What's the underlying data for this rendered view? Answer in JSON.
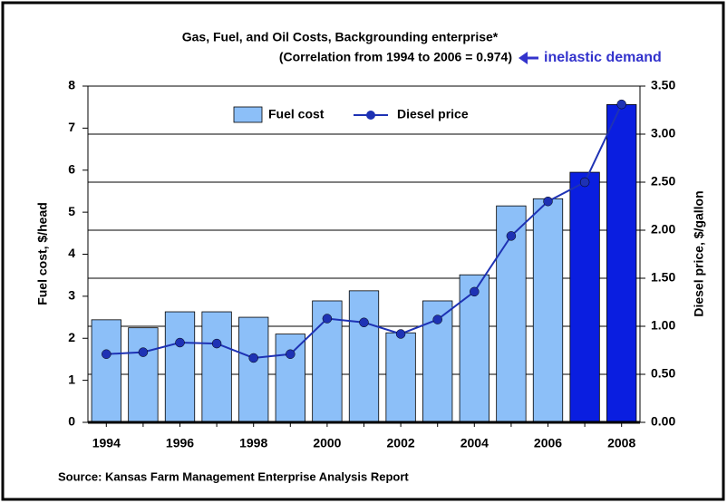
{
  "chart_data": {
    "type": "bar",
    "title": "Gas, Fuel, and Oil Costs, Backgrounding enterprise*",
    "subtitle": "(Correlation from 1994 to 2006 = 0.974)",
    "annotation": "inelastic demand",
    "source": "Source: Kansas Farm Management Enterprise Analysis Report",
    "ylabel": "Fuel cost, $/head",
    "y2label": "Diesel price, $/gallon",
    "categories": [
      "1994",
      null,
      "1996",
      null,
      "1998",
      null,
      "2000",
      null,
      "2002",
      null,
      "2004",
      null,
      "2006",
      null,
      "2008"
    ],
    "series": [
      {
        "name": "Fuel cost",
        "type": "bar",
        "color": "#8cbff8",
        "colors": [
          "#8cbff8",
          "#8cbff8",
          "#8cbff8",
          "#8cbff8",
          "#8cbff8",
          "#8cbff8",
          "#8cbff8",
          "#8cbff8",
          "#8cbff8",
          "#8cbff8",
          "#8cbff8",
          "#8cbff8",
          "#8cbff8",
          "#0a1ee0",
          "#0a1ee0"
        ],
        "values": [
          2.44,
          2.25,
          2.63,
          2.63,
          2.5,
          2.1,
          2.89,
          3.13,
          2.13,
          2.89,
          3.51,
          5.15,
          5.32,
          5.95,
          7.56
        ]
      },
      {
        "name": "Diesel price",
        "type": "line",
        "axis": "y2",
        "color": "#1e32b4",
        "values": [
          0.71,
          0.73,
          0.83,
          0.82,
          0.67,
          0.71,
          1.08,
          1.04,
          0.92,
          1.07,
          1.36,
          1.94,
          2.3,
          2.5,
          3.31
        ]
      }
    ],
    "ylim": [
      0,
      8
    ],
    "yticks": [
      0,
      1,
      2,
      3,
      4,
      5,
      6,
      7,
      8
    ],
    "y2lim": [
      0,
      3.5
    ],
    "y2ticks": [
      {
        "value": 0,
        "label": "0.00"
      },
      {
        "value": 0.5,
        "label": "0.50"
      },
      {
        "value": 1,
        "label": "1.00"
      },
      {
        "value": 1.5,
        "label": "1.50"
      },
      {
        "value": 2,
        "label": "2.00"
      },
      {
        "value": 2.5,
        "label": "2.50"
      },
      {
        "value": 3,
        "label": "3.00"
      },
      {
        "value": 3.5,
        "label": "3.50"
      }
    ],
    "grid": true
  }
}
